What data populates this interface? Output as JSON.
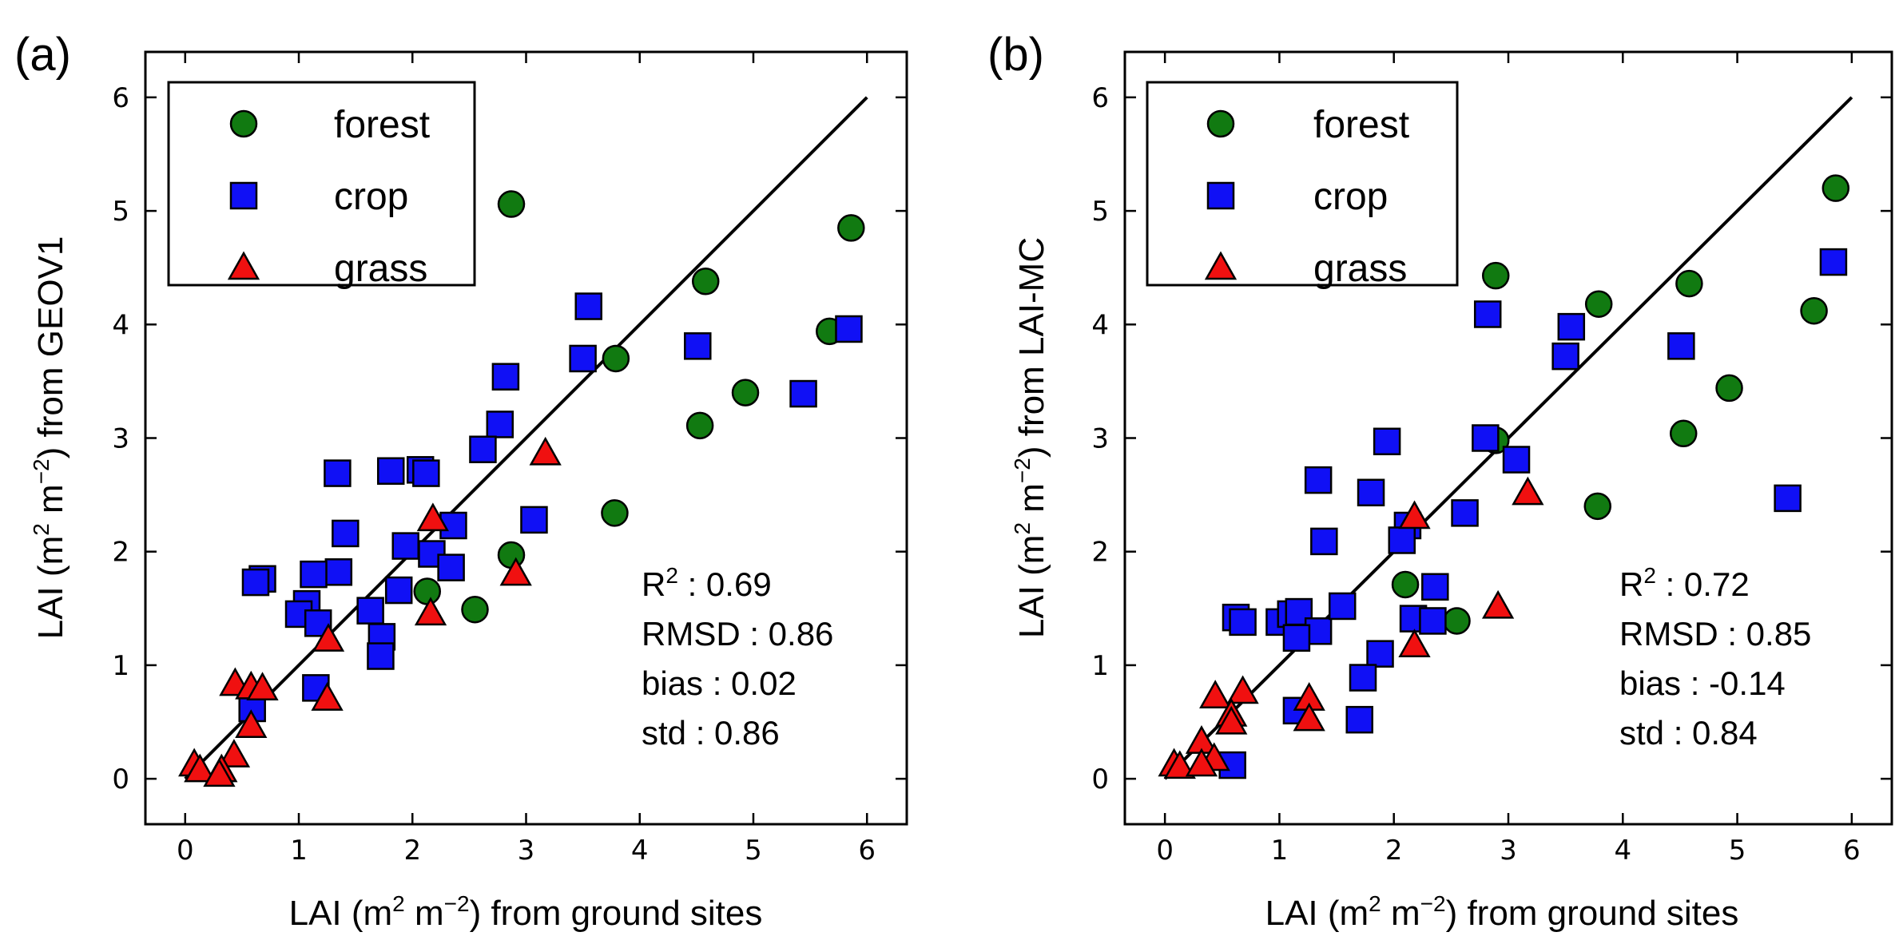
{
  "chart_data": [
    {
      "type": "scatter",
      "panel_label": "(a)",
      "xlabel_pre": "LAI (m",
      "xlabel_sup1": "2",
      "xlabel_mid": " m",
      "xlabel_sup2": "−2",
      "xlabel_post": ") from ground sites",
      "ylabel_pre": "LAI (m",
      "ylabel_sup1": "2",
      "ylabel_mid": " m",
      "ylabel_sup2": "−2",
      "ylabel_post": ") from GEOV1",
      "xlim": [
        -0.35,
        6.35
      ],
      "ylim": [
        -0.4,
        6.4
      ],
      "xticks": [
        0,
        1,
        2,
        3,
        4,
        5,
        6
      ],
      "yticks": [
        0,
        1,
        2,
        3,
        4,
        5,
        6
      ],
      "one_to_one_line": [
        [
          0,
          0
        ],
        [
          6,
          6
        ]
      ],
      "legend": {
        "position": "top-left",
        "entries": [
          "forest",
          "crop",
          "grass"
        ]
      },
      "stats": {
        "r2_label": "R",
        "r2_sup": "2",
        "r2_value": " : 0.69",
        "rmsd": "RMSD : 0.86",
        "bias": "bias : 0.02",
        "std": "std : 0.86"
      },
      "series": [
        {
          "name": "forest",
          "marker": "circle",
          "color": "#117a11",
          "x": [
            2.87,
            5.86,
            4.58,
            3.79,
            5.67,
            4.93,
            4.53,
            3.78,
            2.87,
            2.55,
            2.13
          ],
          "y": [
            5.06,
            4.85,
            4.38,
            3.7,
            3.94,
            3.4,
            3.11,
            2.34,
            1.97,
            1.49,
            1.65
          ]
        },
        {
          "name": "crop",
          "marker": "square",
          "color": "#1010f5",
          "x": [
            3.55,
            3.5,
            5.84,
            4.51,
            2.82,
            5.44,
            2.77,
            2.62,
            1.34,
            1.81,
            2.07,
            2.12,
            1.41,
            2.36,
            3.07,
            1.94,
            2.17,
            2.34,
            1.35,
            0.68,
            0.62,
            1.13,
            1.07,
            1.0,
            1.17,
            1.88,
            1.63,
            1.73,
            1.72,
            1.15,
            0.59
          ],
          "y": [
            4.16,
            3.7,
            3.96,
            3.81,
            3.54,
            3.39,
            3.12,
            2.9,
            2.69,
            2.71,
            2.72,
            2.69,
            2.16,
            2.23,
            2.28,
            2.05,
            1.98,
            1.86,
            1.82,
            1.76,
            1.73,
            1.8,
            1.54,
            1.45,
            1.37,
            1.66,
            1.48,
            1.25,
            1.08,
            0.8,
            0.62
          ]
        },
        {
          "name": "grass",
          "marker": "triangle",
          "color": "#f01010",
          "x": [
            3.17,
            2.18,
            2.91,
            2.16,
            1.26,
            1.25,
            0.44,
            0.58,
            0.68,
            0.58,
            0.43,
            0.32,
            0.08,
            0.13,
            0.3
          ],
          "y": [
            2.86,
            2.28,
            1.8,
            1.45,
            1.22,
            0.7,
            0.83,
            0.8,
            0.79,
            0.46,
            0.2,
            0.07,
            0.12,
            0.07,
            0.03
          ]
        }
      ]
    },
    {
      "type": "scatter",
      "panel_label": "(b)",
      "xlabel_pre": "LAI (m",
      "xlabel_sup1": "2",
      "xlabel_mid": " m",
      "xlabel_sup2": "−2",
      "xlabel_post": ") from ground sites",
      "ylabel_pre": "LAI (m",
      "ylabel_sup1": "2",
      "ylabel_mid": " m",
      "ylabel_sup2": "−2",
      "ylabel_post": ") from LAI-MC",
      "xlim": [
        -0.35,
        6.35
      ],
      "ylim": [
        -0.4,
        6.4
      ],
      "xticks": [
        0,
        1,
        2,
        3,
        4,
        5,
        6
      ],
      "yticks": [
        0,
        1,
        2,
        3,
        4,
        5,
        6
      ],
      "one_to_one_line": [
        [
          0,
          0
        ],
        [
          6,
          6
        ]
      ],
      "legend": {
        "position": "top-left",
        "entries": [
          "forest",
          "crop",
          "grass"
        ]
      },
      "stats": {
        "r2_label": "R",
        "r2_sup": "2",
        "r2_value": " : 0.72",
        "rmsd": "RMSD : 0.85",
        "bias": "bias : -0.14",
        "std": "std : 0.84"
      },
      "series": [
        {
          "name": "forest",
          "marker": "circle",
          "color": "#117a11",
          "x": [
            5.86,
            2.89,
            4.58,
            3.79,
            5.67,
            4.93,
            4.53,
            2.89,
            3.78,
            2.1,
            2.55
          ],
          "y": [
            5.2,
            4.43,
            4.36,
            4.18,
            4.12,
            3.44,
            3.04,
            2.98,
            2.4,
            1.71,
            1.39
          ]
        },
        {
          "name": "crop",
          "marker": "square",
          "color": "#1010f5",
          "x": [
            5.84,
            2.82,
            3.55,
            3.5,
            4.51,
            2.8,
            3.07,
            1.94,
            1.34,
            1.8,
            5.44,
            2.62,
            2.12,
            1.39,
            2.07,
            0.62,
            0.68,
            1.0,
            1.1,
            1.17,
            1.34,
            1.15,
            1.55,
            2.17,
            2.36,
            2.34,
            1.88,
            1.73,
            1.15,
            1.7,
            0.59
          ],
          "y": [
            4.55,
            4.09,
            3.98,
            3.72,
            3.81,
            3.0,
            2.81,
            2.97,
            2.63,
            2.52,
            2.47,
            2.34,
            2.23,
            2.09,
            2.1,
            1.42,
            1.38,
            1.38,
            1.45,
            1.47,
            1.3,
            1.24,
            1.52,
            1.41,
            1.69,
            1.39,
            1.1,
            0.89,
            0.6,
            0.52,
            0.12
          ]
        },
        {
          "name": "grass",
          "marker": "triangle",
          "color": "#f01010",
          "x": [
            3.17,
            2.18,
            2.91,
            2.18,
            0.44,
            0.68,
            0.58,
            0.58,
            1.26,
            1.26,
            0.32,
            0.43,
            0.08,
            0.13,
            0.32
          ],
          "y": [
            2.51,
            2.3,
            1.51,
            1.17,
            0.72,
            0.76,
            0.56,
            0.49,
            0.7,
            0.52,
            0.32,
            0.17,
            0.12,
            0.1,
            0.12
          ]
        }
      ]
    }
  ]
}
